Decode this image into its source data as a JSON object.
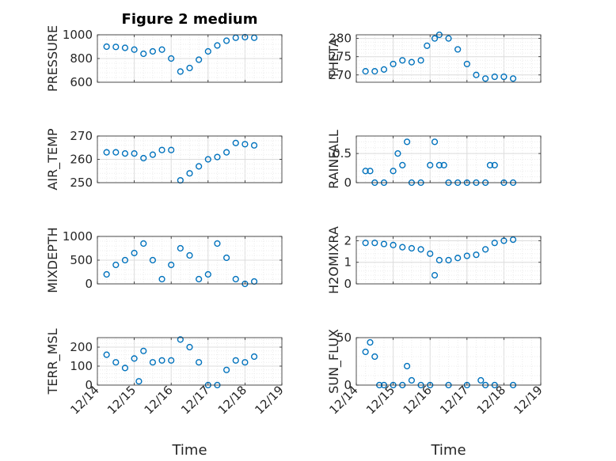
{
  "figure_title": "Figure 2 medium",
  "chart_data": [
    {
      "id": "pressure",
      "type": "scatter",
      "panel": "left-row1",
      "title": "Figure 2 medium",
      "ylabel": "PRESSURE",
      "xlabel": "",
      "ylim": [
        600,
        1000
      ],
      "yticks": [
        600,
        800,
        1000
      ],
      "grid": true,
      "x": [
        "12/14 06:00",
        "12/14 12:00",
        "12/14 18:00",
        "12/15 00:00",
        "12/15 06:00",
        "12/15 12:00",
        "12/15 18:00",
        "12/16 00:00",
        "12/16 06:00",
        "12/16 12:00",
        "12/16 18:00",
        "12/17 00:00",
        "12/17 06:00",
        "12/17 12:00",
        "12/17 18:00",
        "12/18 00:00",
        "12/18 06:00"
      ],
      "y": [
        900,
        898,
        890,
        875,
        840,
        860,
        875,
        800,
        690,
        720,
        790,
        860,
        910,
        950,
        975,
        980,
        975
      ]
    },
    {
      "id": "theta",
      "type": "scatter",
      "panel": "right-row1",
      "ylabel": "THETA",
      "xlabel": "",
      "ylim": [
        268,
        281
      ],
      "yticks": [
        270,
        275,
        280
      ],
      "grid": true,
      "x": [
        "12/14 06:00",
        "12/14 12:00",
        "12/14 18:00",
        "12/15 00:00",
        "12/15 06:00",
        "12/15 12:00",
        "12/15 18:00",
        "12/15 22:00",
        "12/16 03:00",
        "12/16 06:00",
        "12/16 12:00",
        "12/16 18:00",
        "12/17 00:00",
        "12/17 06:00",
        "12/17 12:00",
        "12/17 18:00",
        "12/18 00:00",
        "12/18 06:00"
      ],
      "y": [
        271,
        271,
        271.5,
        273,
        274,
        273.5,
        274,
        278,
        280,
        281,
        280,
        277,
        273,
        270,
        269,
        269.5,
        269.5,
        269
      ]
    },
    {
      "id": "air_temp",
      "type": "scatter",
      "panel": "left-row2",
      "ylabel": "AIR_TEMP",
      "xlabel": "",
      "ylim": [
        250,
        270
      ],
      "yticks": [
        250,
        260,
        270
      ],
      "grid": true,
      "x": [
        "12/14 06:00",
        "12/14 12:00",
        "12/14 18:00",
        "12/15 00:00",
        "12/15 06:00",
        "12/15 12:00",
        "12/15 18:00",
        "12/16 00:00",
        "12/16 06:00",
        "12/16 12:00",
        "12/16 18:00",
        "12/17 00:00",
        "12/17 06:00",
        "12/17 12:00",
        "12/17 18:00",
        "12/18 00:00",
        "12/18 06:00"
      ],
      "y": [
        263,
        263,
        262.5,
        262.5,
        260.5,
        262,
        264,
        264,
        251,
        254,
        257,
        260,
        261,
        263,
        267,
        266.5,
        266
      ]
    },
    {
      "id": "rainfall",
      "type": "scatter",
      "panel": "right-row2",
      "ylabel": "RAINFALL",
      "xlabel": "",
      "ylim": [
        0,
        0.8
      ],
      "yticks": [
        0,
        0.5
      ],
      "grid": true,
      "x": [
        "12/14 06:00",
        "12/14 09:00",
        "12/14 12:00",
        "12/14 18:00",
        "12/15 00:00",
        "12/15 03:00",
        "12/15 06:00",
        "12/15 09:00",
        "12/15 12:00",
        "12/15 18:00",
        "12/16 00:00",
        "12/16 03:00",
        "12/16 06:00",
        "12/16 09:00",
        "12/16 12:00",
        "12/16 18:00",
        "12/17 00:00",
        "12/17 06:00",
        "12/17 12:00",
        "12/17 15:00",
        "12/17 18:00",
        "12/18 00:00",
        "12/18 06:00"
      ],
      "y": [
        0.2,
        0.2,
        0,
        0,
        0.2,
        0.5,
        0.3,
        0.7,
        0,
        0,
        0.3,
        0.7,
        0.3,
        0.3,
        0,
        0,
        0,
        0,
        0,
        0.3,
        0.3,
        0,
        0
      ]
    },
    {
      "id": "mixdepth",
      "type": "scatter",
      "panel": "left-row3",
      "ylabel": "MIXDEPTH",
      "xlabel": "",
      "ylim": [
        0,
        1000
      ],
      "yticks": [
        0,
        500,
        1000
      ],
      "grid": true,
      "x": [
        "12/14 06:00",
        "12/14 12:00",
        "12/14 18:00",
        "12/15 00:00",
        "12/15 06:00",
        "12/15 12:00",
        "12/15 18:00",
        "12/16 00:00",
        "12/16 06:00",
        "12/16 12:00",
        "12/16 18:00",
        "12/17 00:00",
        "12/17 06:00",
        "12/17 12:00",
        "12/17 18:00",
        "12/18 00:00",
        "12/18 06:00"
      ],
      "y": [
        200,
        400,
        500,
        650,
        850,
        500,
        100,
        400,
        750,
        600,
        100,
        200,
        850,
        550,
        100,
        0,
        50
      ]
    },
    {
      "id": "h2omixra",
      "type": "scatter",
      "panel": "right-row3",
      "ylabel": "H2OMIXRA",
      "xlabel": "",
      "ylim": [
        0,
        2.2
      ],
      "yticks": [
        0,
        1,
        2
      ],
      "grid": true,
      "x": [
        "12/14 06:00",
        "12/14 12:00",
        "12/14 18:00",
        "12/15 00:00",
        "12/15 06:00",
        "12/15 12:00",
        "12/15 18:00",
        "12/16 00:00",
        "12/16 03:00",
        "12/16 06:00",
        "12/16 12:00",
        "12/16 18:00",
        "12/17 00:00",
        "12/17 06:00",
        "12/17 12:00",
        "12/17 18:00",
        "12/18 00:00",
        "12/18 06:00"
      ],
      "y": [
        1.9,
        1.9,
        1.85,
        1.8,
        1.7,
        1.65,
        1.6,
        1.4,
        0.4,
        1.1,
        1.1,
        1.2,
        1.3,
        1.35,
        1.6,
        1.9,
        2.0,
        2.05
      ]
    },
    {
      "id": "terr_msl",
      "type": "scatter",
      "panel": "left-row4",
      "ylabel": "TERR_MSL",
      "xlabel": "Time",
      "ylim": [
        0,
        250
      ],
      "yticks": [
        0,
        100,
        200
      ],
      "grid": true,
      "x": [
        "12/14 06:00",
        "12/14 12:00",
        "12/14 18:00",
        "12/15 00:00",
        "12/15 03:00",
        "12/15 06:00",
        "12/15 12:00",
        "12/15 18:00",
        "12/16 00:00",
        "12/16 06:00",
        "12/16 12:00",
        "12/16 18:00",
        "12/17 00:00",
        "12/17 06:00",
        "12/17 12:00",
        "12/17 18:00",
        "12/18 00:00",
        "12/18 06:00"
      ],
      "y": [
        160,
        120,
        90,
        140,
        20,
        180,
        120,
        130,
        130,
        240,
        200,
        120,
        0,
        0,
        80,
        130,
        120,
        150
      ]
    },
    {
      "id": "sun_flux",
      "type": "scatter",
      "panel": "right-row4",
      "ylabel": "SUN_FLUX",
      "xlabel": "Time",
      "ylim": [
        0,
        50
      ],
      "yticks": [
        0,
        50
      ],
      "grid": true,
      "x": [
        "12/14 06:00",
        "12/14 09:00",
        "12/14 12:00",
        "12/14 15:00",
        "12/14 18:00",
        "12/15 00:00",
        "12/15 06:00",
        "12/15 09:00",
        "12/15 12:00",
        "12/15 18:00",
        "12/16 00:00",
        "12/16 12:00",
        "12/17 00:00",
        "12/17 09:00",
        "12/17 12:00",
        "12/17 18:00",
        "12/18 06:00"
      ],
      "y": [
        35,
        45,
        30,
        0,
        0,
        0,
        0,
        20,
        5,
        0,
        0,
        0,
        0,
        5,
        0,
        0,
        0
      ]
    }
  ],
  "x_axis": {
    "tick_labels": [
      "12/14",
      "12/15",
      "12/16",
      "12/17",
      "12/18",
      "12/19"
    ],
    "xlim": [
      "12/14 00:00",
      "12/19 00:00"
    ]
  }
}
